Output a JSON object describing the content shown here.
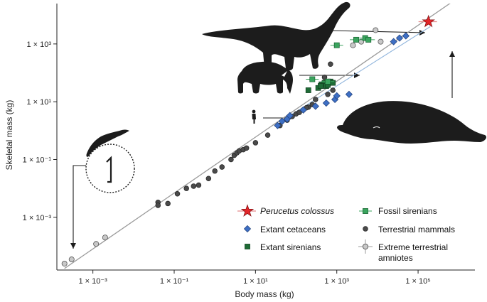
{
  "chart_data": {
    "type": "scatter",
    "title": "",
    "xlabel": "Body mass (kg)",
    "ylabel": "Skeletal mass (kg)",
    "x_scale": "log",
    "y_scale": "log",
    "xlim": [
      0.00013,
      2500000
    ],
    "ylim": [
      1.5e-05,
      25000
    ],
    "x_ticks": [
      {
        "value": 0.001,
        "label": "1 × 10⁻³"
      },
      {
        "value": 0.1,
        "label": "1 × 10⁻¹"
      },
      {
        "value": 10,
        "label": "1 × 10¹"
      },
      {
        "value": 1000,
        "label": "1 × 10³"
      },
      {
        "value": 100000,
        "label": "1 × 10⁵"
      }
    ],
    "y_ticks": [
      {
        "value": 0.001,
        "label": "1 × 10⁻³"
      },
      {
        "value": 0.1,
        "label": "1 × 10⁻¹"
      },
      {
        "value": 10,
        "label": "1 × 10¹"
      },
      {
        "value": 1000,
        "label": "1 × 10³"
      }
    ],
    "legend": {
      "placement": "bottom-right",
      "entries": [
        {
          "key": "perucetus",
          "label": "Perucetus colossus",
          "italic": true
        },
        {
          "key": "cetaceans",
          "label": "Extant cetaceans"
        },
        {
          "key": "sirenians",
          "label": "Extant sirenians"
        },
        {
          "key": "fossil",
          "label": "Fossil sirenians"
        },
        {
          "key": "terrestrial",
          "label": "Terrestrial mammals"
        },
        {
          "key": "extreme",
          "label": "Extreme terrestrial amniotes"
        }
      ]
    },
    "colors": {
      "perucetus": "#e3262a",
      "cetaceans": "#3e6fc4",
      "sirenians": "#1e6b36",
      "fossil": "#3aa45e",
      "terrestrial": "#505050",
      "extreme": "#c8c8c8",
      "fit_line": "#9a9a9a",
      "cetacean_line": "#8fb4dc",
      "silhouette": "#1c1c1c"
    },
    "regression_lines": [
      {
        "key": "fit_line",
        "points": [
          [
            0.0002,
            1.7e-05
          ],
          [
            2000000,
            80000
          ]
        ]
      },
      {
        "key": "cetacean_line",
        "points": [
          [
            40,
            2
          ],
          [
            200000,
            4000
          ]
        ]
      }
    ],
    "series": [
      {
        "key": "terrestrial",
        "points": [
          [
            0.04,
            0.0033
          ],
          [
            0.04,
            0.0026
          ],
          [
            0.07,
            0.003
          ],
          [
            0.12,
            0.0065
          ],
          [
            0.2,
            0.01
          ],
          [
            0.3,
            0.012
          ],
          [
            0.4,
            0.013
          ],
          [
            0.7,
            0.022
          ],
          [
            1.0,
            0.04
          ],
          [
            1.5,
            0.055
          ],
          [
            2.5,
            0.1
          ],
          [
            3.0,
            0.14
          ],
          [
            3.5,
            0.17
          ],
          [
            4.0,
            0.2
          ],
          [
            5,
            0.22
          ],
          [
            6,
            0.25
          ],
          [
            10,
            0.38
          ],
          [
            20,
            0.7
          ],
          [
            40,
            1.5
          ],
          [
            60,
            2.3
          ],
          [
            80,
            3.1
          ],
          [
            100,
            3.8
          ],
          [
            150,
            5.2
          ],
          [
            200,
            6.5
          ],
          [
            120,
            4.3
          ],
          [
            180,
            6.2
          ],
          [
            250,
            8
          ],
          [
            300,
            12
          ],
          [
            600,
            18
          ],
          [
            800,
            25
          ],
          [
            500,
            70
          ],
          [
            700,
            200
          ]
        ]
      },
      {
        "key": "extreme",
        "points": [
          [
            0.0002,
            2.5e-05
          ],
          [
            0.0003,
            3.5e-05
          ],
          [
            0.0012,
            0.00012
          ],
          [
            0.002,
            0.0002
          ],
          [
            2500,
            900
          ],
          [
            4000,
            1200
          ],
          [
            9000,
            3000
          ],
          [
            12000,
            1200
          ]
        ]
      },
      {
        "key": "cetaceans",
        "points": [
          [
            35,
            1.5
          ],
          [
            45,
            2.1
          ],
          [
            60,
            2.5
          ],
          [
            70,
            3.3
          ],
          [
            150,
            5.2
          ],
          [
            300,
            7
          ],
          [
            550,
            9
          ],
          [
            900,
            12
          ],
          [
            1000,
            16
          ],
          [
            2000,
            18
          ],
          [
            25000,
            1200
          ],
          [
            35000,
            1600
          ],
          [
            50000,
            1900
          ]
        ]
      },
      {
        "key": "sirenians",
        "points": [
          [
            200,
            25
          ],
          [
            350,
            30
          ],
          [
            420,
            40
          ],
          [
            500,
            45
          ],
          [
            550,
            35
          ],
          [
            600,
            38
          ],
          [
            700,
            50
          ],
          [
            800,
            45
          ],
          [
            400,
            35
          ]
        ]
      },
      {
        "key": "fossil",
        "points": [
          [
            250,
            60
          ],
          [
            600,
            50
          ],
          [
            1000,
            900
          ],
          [
            3000,
            1400
          ],
          [
            5000,
            1600
          ],
          [
            6000,
            1400
          ]
        ]
      },
      {
        "key": "perucetus",
        "points": [
          [
            180000,
            5900
          ]
        ]
      }
    ]
  }
}
